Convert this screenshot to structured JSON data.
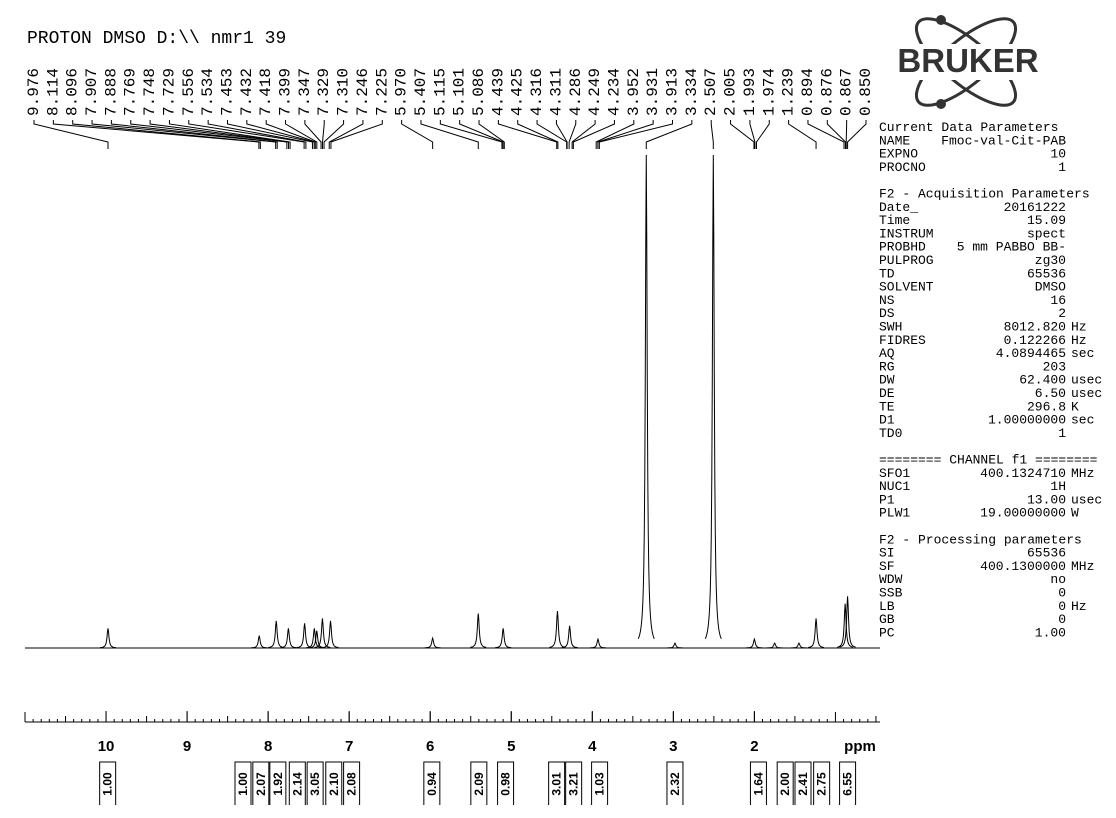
{
  "chart_data": {
    "type": "nmr",
    "title": "PROTON DMSO D:\\\\ nmr1 39",
    "xlabel": "ppm",
    "xlim": [
      11.0,
      0.45
    ],
    "xticks": [
      10,
      9,
      8,
      7,
      6,
      5,
      4,
      3,
      2
    ],
    "peak_labels": [
      9.976,
      8.114,
      8.096,
      7.907,
      7.888,
      7.769,
      7.748,
      7.729,
      7.556,
      7.534,
      7.453,
      7.432,
      7.418,
      7.399,
      7.347,
      7.329,
      {
        "value": 7.31,
        "label": "7.310"
      },
      7.246,
      7.225,
      {
        "value": 5.97,
        "label": "5.970"
      },
      5.407,
      5.115,
      5.101,
      5.086,
      4.439,
      4.425,
      4.316,
      4.311,
      4.286,
      4.249,
      4.234,
      3.952,
      3.931,
      3.913,
      3.334,
      2.507,
      2.005,
      1.993,
      1.974,
      1.239,
      0.894,
      0.876,
      0.867,
      {
        "value": 0.85,
        "label": "0.850"
      }
    ],
    "peaks": {
      "x": [
        9.976,
        8.11,
        7.9,
        7.75,
        7.55,
        7.43,
        7.4,
        7.33,
        7.23,
        5.97,
        5.407,
        5.1,
        4.43,
        4.28,
        3.93,
        3.334,
        2.98,
        2.507,
        2.0,
        1.75,
        1.45,
        1.239,
        0.88,
        0.85
      ],
      "values": [
        4,
        2.5,
        5.5,
        4,
        5,
        4,
        3.5,
        6,
        5.5,
        2,
        7,
        4,
        7.5,
        4.5,
        1.8,
        100,
        1,
        100,
        1.8,
        1,
        1,
        6,
        9,
        10.5
      ]
    },
    "integrals": {
      "x": [
        9.98,
        8.31,
        8.09,
        7.88,
        7.64,
        7.42,
        7.19,
        6.97,
        5.98,
        5.4,
        5.07,
        4.44,
        4.23,
        3.91,
        2.98,
        1.95,
        1.62,
        1.4,
        1.17,
        0.85
      ],
      "values": [
        1.0,
        1.0,
        2.07,
        1.92,
        2.14,
        3.05,
        2.1,
        2.08,
        0.94,
        2.09,
        0.98,
        3.01,
        3.21,
        1.03,
        2.32,
        1.64,
        2.0,
        2.41,
        2.75,
        6.55
      ],
      "value_labels": [
        "1.00",
        "1.00",
        "2.07",
        "1.92",
        "2.14",
        "3.05",
        "2.10",
        "2.08",
        "0.94",
        "2.09",
        "0.98",
        "3.01",
        "3.21",
        "1.03",
        "2.32",
        "1.64",
        "2.00",
        "2.41",
        "2.75",
        "6.55"
      ]
    }
  },
  "logo": "BRUKER",
  "parameters": [
    {
      "title": "Current Data Parameters",
      "rows": [
        [
          "NAME",
          "Fmoc-val-Cit-PAB"
        ],
        [
          "EXPNO",
          "10"
        ],
        [
          "PROCNO",
          "1"
        ]
      ]
    },
    {
      "title": "F2 - Acquisition Parameters",
      "rows": [
        [
          "Date_",
          "20161222"
        ],
        [
          "Time",
          "15.09"
        ],
        [
          "INSTRUM",
          "spect"
        ],
        [
          "PROBHD",
          "5 mm PABBO BB-"
        ],
        [
          "PULPROG",
          "zg30"
        ],
        [
          "TD",
          "65536"
        ],
        [
          "SOLVENT",
          "DMSO"
        ],
        [
          "NS",
          "16"
        ],
        [
          "DS",
          "2"
        ],
        [
          "SWH",
          "8012.820",
          "Hz"
        ],
        [
          "FIDRES",
          "0.122266",
          "Hz"
        ],
        [
          "AQ",
          "4.0894465",
          "sec"
        ],
        [
          "RG",
          "203"
        ],
        [
          "DW",
          "62.400",
          "usec"
        ],
        [
          "DE",
          "6.50",
          "usec"
        ],
        [
          "TE",
          "296.8",
          "K"
        ],
        [
          "D1",
          "1.00000000",
          "sec"
        ],
        [
          "TD0",
          "1"
        ]
      ]
    },
    {
      "title": "======== CHANNEL f1 ========",
      "rows": [
        [
          "SFO1",
          "400.1324710",
          "MHz"
        ],
        [
          "NUC1",
          "1H"
        ],
        [
          "P1",
          "13.00",
          "usec"
        ],
        [
          "PLW1",
          "19.00000000",
          "W"
        ]
      ]
    },
    {
      "title": "F2 - Processing parameters",
      "rows": [
        [
          "SI",
          "65536"
        ],
        [
          "SF",
          "400.1300000",
          "MHz"
        ],
        [
          "WDW",
          "no"
        ],
        [
          "SSB",
          "0"
        ],
        [
          "LB",
          "0",
          "Hz"
        ],
        [
          "GB",
          "0"
        ],
        [
          "PC",
          "1.00"
        ]
      ]
    }
  ]
}
